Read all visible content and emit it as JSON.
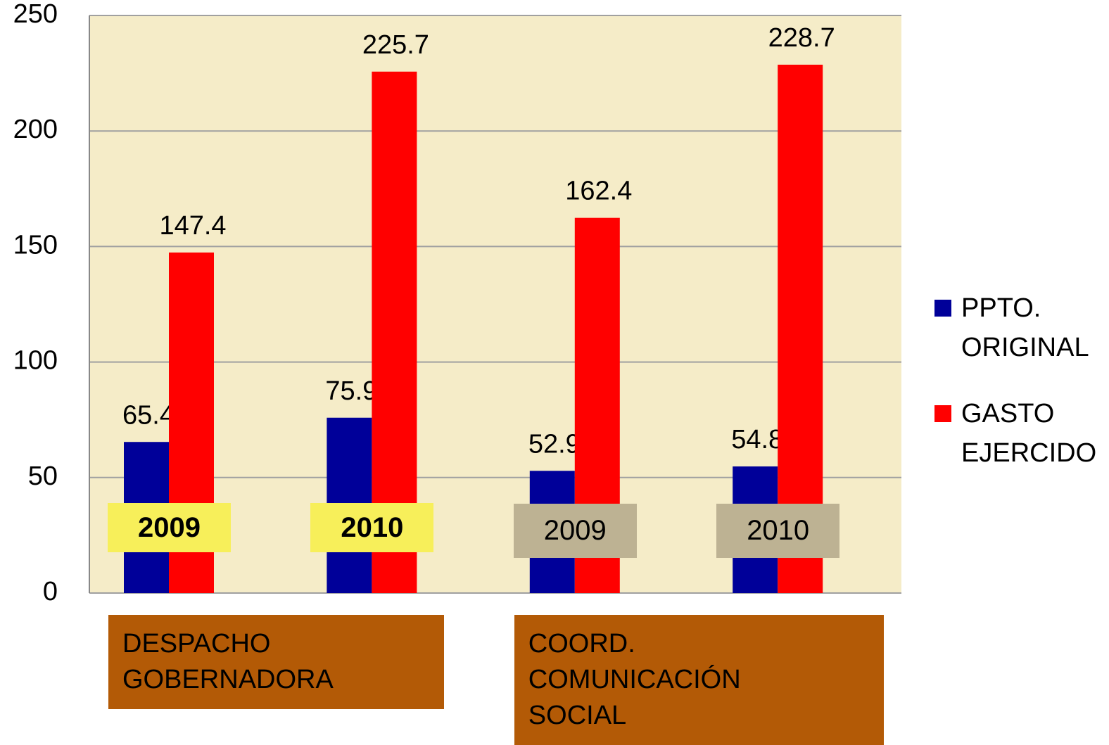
{
  "chart_data": {
    "type": "bar",
    "categories": [
      "2009",
      "2010",
      "2009",
      "2010"
    ],
    "category_colors": [
      "#f7ef5a",
      "#f7ef5a",
      "#bdb293",
      "#bdb293"
    ],
    "groups": [
      "DESPACHO GOBERNADORA",
      "COORD. COMUNICACIÓN SOCIAL"
    ],
    "group_color": "#b35a06",
    "series": [
      {
        "name": "PPTO. ORIGINAL",
        "color": "#000099",
        "values": [
          65.4,
          75.9,
          52.9,
          54.8
        ]
      },
      {
        "name": "GASTO EJERCIDO",
        "color": "#ff0000",
        "values": [
          147.4,
          225.7,
          162.4,
          228.7
        ]
      }
    ],
    "ylim": [
      0,
      250
    ],
    "yticks": [
      0,
      50,
      100,
      150,
      200,
      250
    ],
    "grid": true,
    "legend": "right"
  }
}
